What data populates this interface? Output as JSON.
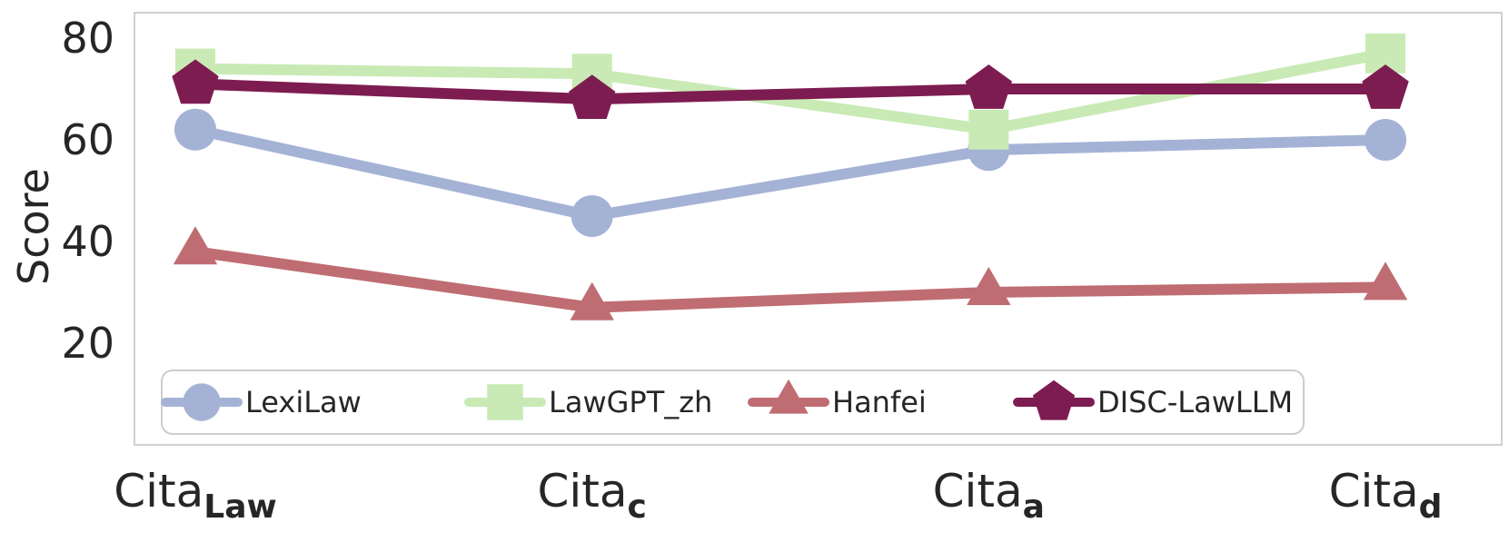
{
  "figure": {
    "background": "#ffffff",
    "plot_border_color": "#d0d0d0",
    "text_color": "#262626"
  },
  "chart_data": {
    "type": "line",
    "title": "",
    "xlabel": "",
    "ylabel": "Score",
    "ylim": [
      0,
      85
    ],
    "yticks": [
      20,
      40,
      60,
      80
    ],
    "grid": false,
    "legend_position": "bottom-inside",
    "x_tick_labels": [
      {
        "main": "Cita",
        "sub": "Law"
      },
      {
        "main": "Cita",
        "sub": "c"
      },
      {
        "main": "Cita",
        "sub": "a"
      },
      {
        "main": "Cita",
        "sub": "d"
      }
    ],
    "series": [
      {
        "name": "LexiLaw",
        "marker": "circle",
        "color": "#a4b2d5",
        "values": [
          62,
          45,
          58,
          60
        ]
      },
      {
        "name": "LawGPT_zh",
        "marker": "square",
        "color": "#c9eab5",
        "values": [
          74,
          73,
          62,
          77
        ]
      },
      {
        "name": "Hanfei",
        "marker": "triangle",
        "color": "#bf6d72",
        "values": [
          38,
          27,
          30,
          31
        ]
      },
      {
        "name": "DISC-LawLLM",
        "marker": "pentagon",
        "color": "#7d1c50",
        "values": [
          71,
          68,
          70,
          70
        ]
      }
    ]
  }
}
